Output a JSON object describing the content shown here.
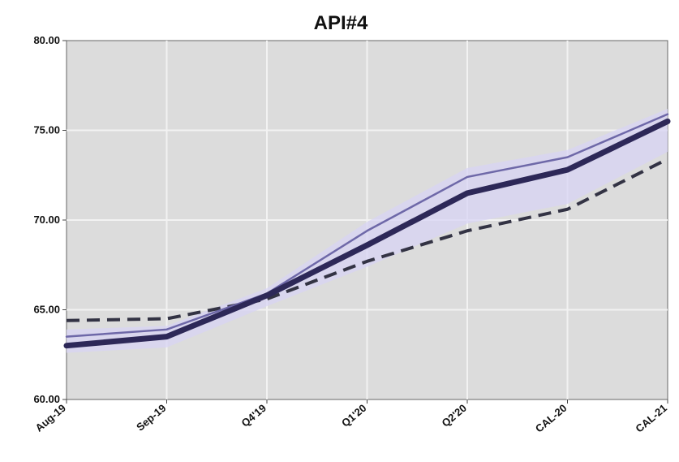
{
  "chart_data": {
    "type": "line",
    "title": "API#4",
    "xlabel": "",
    "ylabel": "",
    "categories": [
      "Aug-19",
      "Sep-19",
      "Q4'19",
      "Q1'20",
      "Q2'20",
      "CAL-20",
      "CAL-21"
    ],
    "yticks": [
      "60.00",
      "65.00",
      "70.00",
      "75.00",
      "80.00"
    ],
    "ylim": [
      60,
      80
    ],
    "grid": true,
    "legend": "none",
    "series": [
      {
        "values": [
          63.0,
          63.5,
          65.8,
          68.6,
          71.5,
          72.8,
          75.5
        ],
        "color": "#2d2858",
        "style": "solid-thick"
      },
      {
        "values": [
          63.5,
          63.9,
          65.9,
          69.4,
          72.4,
          73.5,
          75.9
        ],
        "color": "#6e68a8",
        "style": "solid-thin"
      },
      {
        "values": [
          64.4,
          64.5,
          65.6,
          67.7,
          69.4,
          70.6,
          73.4
        ],
        "color": "#333344",
        "style": "dashed"
      }
    ],
    "band": {
      "upper": [
        63.9,
        64.1,
        66.2,
        69.9,
        72.9,
        73.9,
        76.2
      ],
      "lower": [
        62.6,
        62.9,
        65.2,
        67.4,
        69.8,
        70.9,
        73.8
      ],
      "color": "#d8d4f4"
    }
  }
}
